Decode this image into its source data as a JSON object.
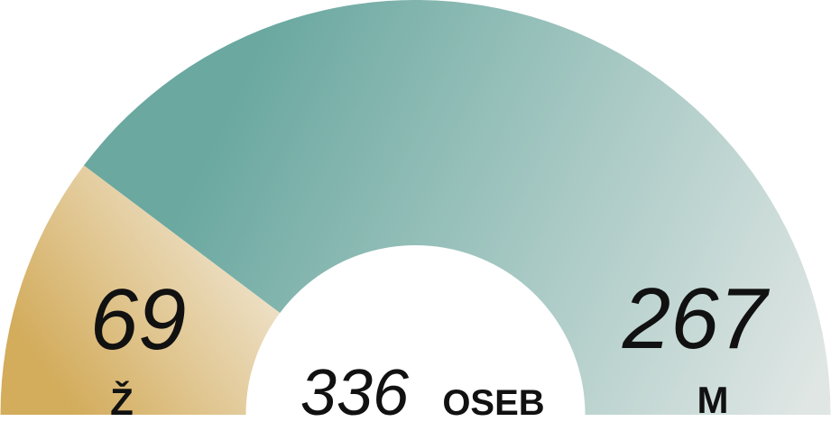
{
  "chart_data": {
    "type": "pie",
    "variant": "half-donut",
    "total_value": "336",
    "total_label": "OSEB",
    "slices": [
      {
        "label": "Ž",
        "value": 69,
        "display": "69",
        "color_start": "#d3ac5c",
        "color_end": "#f3ebdc"
      },
      {
        "label": "M",
        "value": 267,
        "display": "267",
        "color_start": "#6aa8a0",
        "color_end": "#dfe6e4"
      }
    ]
  }
}
